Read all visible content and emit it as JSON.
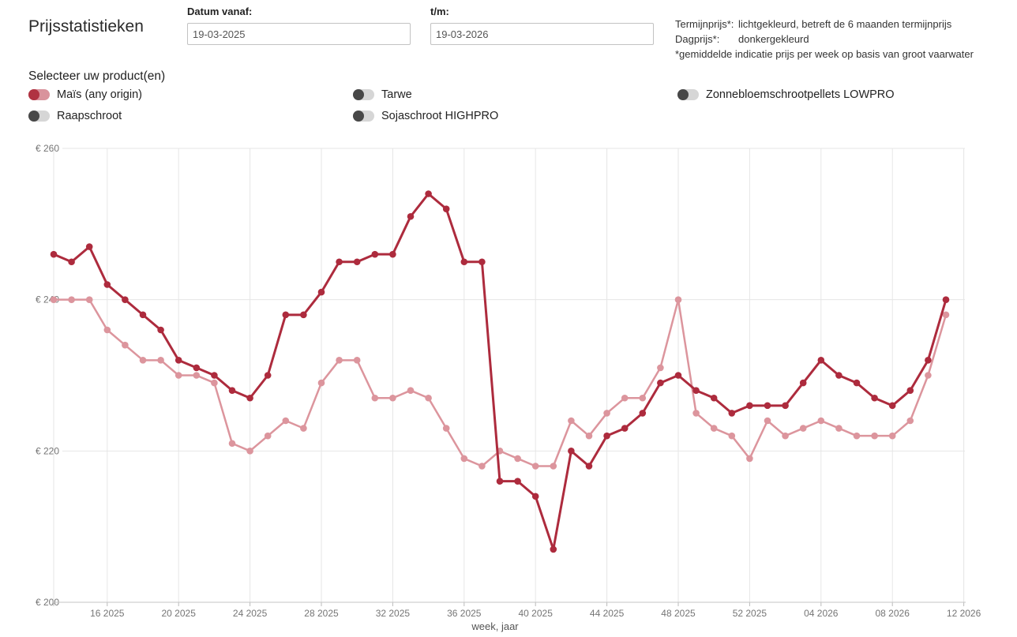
{
  "header": {
    "title": "Prijsstatistieken",
    "date_from": {
      "label": "Datum vanaf:",
      "value": "19-03-2025"
    },
    "date_to": {
      "label": "t/m:",
      "value": "19-03-2026"
    },
    "legend": {
      "term_label": "Termijnprijs*:",
      "term_desc": "lichtgekleurd, betreft de 6 maanden termijnprijs",
      "day_label": "Dagprijs*:",
      "day_desc": "donkergekleurd",
      "footnote": "*gemiddelde indicatie prijs per week op basis van groot vaarwater"
    }
  },
  "products": {
    "heading": "Selecteer uw product(en)",
    "items": [
      {
        "label": "Maïs (any origin)",
        "active": true
      },
      {
        "label": "Tarwe",
        "active": false
      },
      {
        "label": "Zonnebloemschrootpellets LOWPRO",
        "active": false
      },
      {
        "label": "Raapschroot",
        "active": false
      },
      {
        "label": "Sojaschroot HIGHPRO",
        "active": false
      }
    ]
  },
  "colors": {
    "day_line": "#ad2b3d",
    "term_line": "#dc959d",
    "toggle_active_knob": "#b03342",
    "toggle_active_track": "#d9939c",
    "toggle_inactive_knob": "#474747",
    "toggle_inactive_track": "#d6d6d6",
    "grid": "#e6e6e6",
    "axis": "#c6c6c6",
    "tick_text": "#757575"
  },
  "chart_data": {
    "type": "line",
    "title": "",
    "xlabel": "week, jaar",
    "ylabel": "€",
    "ylim": [
      200,
      260
    ],
    "yticks": [
      200,
      220,
      240,
      260
    ],
    "ytick_prefix": "€ ",
    "grid": true,
    "x": [
      "13 2025",
      "14 2025",
      "15 2025",
      "16 2025",
      "17 2025",
      "18 2025",
      "19 2025",
      "20 2025",
      "21 2025",
      "22 2025",
      "23 2025",
      "24 2025",
      "25 2025",
      "26 2025",
      "27 2025",
      "28 2025",
      "29 2025",
      "30 2025",
      "31 2025",
      "32 2025",
      "33 2025",
      "34 2025",
      "35 2025",
      "36 2025",
      "37 2025",
      "38 2025",
      "39 2025",
      "40 2025",
      "41 2025",
      "42 2025",
      "43 2025",
      "44 2025",
      "45 2025",
      "46 2025",
      "47 2025",
      "48 2025",
      "49 2025",
      "50 2025",
      "51 2025",
      "52 2025",
      "01 2026",
      "02 2026",
      "03 2026",
      "04 2026",
      "05 2026",
      "06 2026",
      "07 2026",
      "08 2026",
      "09 2026",
      "10 2026",
      "11 2026"
    ],
    "xticks": [
      {
        "index": 0,
        "label": ""
      },
      {
        "index": 3,
        "label": "16 2025"
      },
      {
        "index": 7,
        "label": "20 2025"
      },
      {
        "index": 11,
        "label": "24 2025"
      },
      {
        "index": 15,
        "label": "28 2025"
      },
      {
        "index": 19,
        "label": "32 2025"
      },
      {
        "index": 23,
        "label": "36 2025"
      },
      {
        "index": 27,
        "label": "40 2025"
      },
      {
        "index": 31,
        "label": "44 2025"
      },
      {
        "index": 35,
        "label": "48 2025"
      },
      {
        "index": 39,
        "label": "52 2025"
      },
      {
        "index": 43,
        "label": "04 2026"
      },
      {
        "index": 47,
        "label": "08 2026"
      },
      {
        "index": 51,
        "label": "12 2026"
      }
    ],
    "series": [
      {
        "name": "Maïs (any origin) Termijnprijs",
        "color": "#dc959d",
        "width": 2.5,
        "values": [
          240,
          240,
          240,
          236,
          234,
          232,
          232,
          230,
          230,
          229,
          221,
          220,
          222,
          224,
          223,
          229,
          232,
          232,
          227,
          227,
          228,
          227,
          223,
          219,
          218,
          220,
          219,
          218,
          218,
          224,
          222,
          225,
          227,
          227,
          231,
          240,
          225,
          223,
          222,
          219,
          224,
          222,
          223,
          224,
          223,
          222,
          222,
          222,
          224,
          230,
          238
        ]
      },
      {
        "name": "Maïs (any origin) Dagprijs",
        "color": "#ad2b3d",
        "width": 3,
        "values": [
          246,
          245,
          247,
          242,
          240,
          238,
          236,
          232,
          231,
          230,
          228,
          227,
          230,
          238,
          238,
          241,
          245,
          245,
          246,
          246,
          251,
          254,
          252,
          245,
          245,
          216,
          216,
          214,
          207,
          220,
          218,
          222,
          223,
          225,
          229,
          230,
          228,
          227,
          225,
          226,
          226,
          226,
          229,
          232,
          230,
          229,
          227,
          226,
          228,
          232,
          240
        ]
      }
    ],
    "legend_position": "none"
  }
}
